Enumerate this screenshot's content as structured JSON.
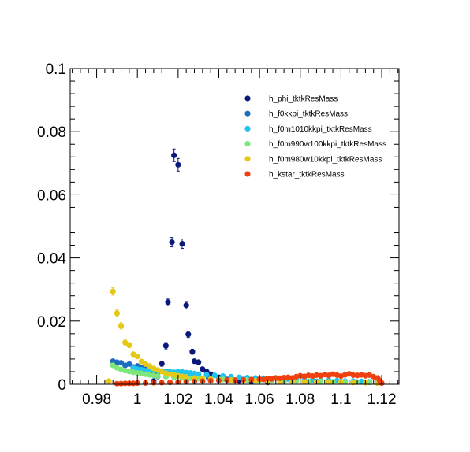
{
  "chart_data": {
    "type": "scatter",
    "title": "",
    "xlabel": "",
    "ylabel": "",
    "xlim": [
      0.967,
      1.1285
    ],
    "ylim": [
      0,
      0.1
    ],
    "xticks": [
      0.98,
      1.0,
      1.02,
      1.04,
      1.06,
      1.08,
      1.1,
      1.12
    ],
    "xtick_labels": [
      "0.98",
      "1",
      "1.02",
      "1.04",
      "1.06",
      "1.08",
      "1.1",
      "1.12"
    ],
    "yticks": [
      0,
      0.02,
      0.04,
      0.06,
      0.08,
      0.1
    ],
    "ytick_labels": [
      "0",
      "0.02",
      "0.04",
      "0.06",
      "0.08",
      "0.1"
    ],
    "grid": false,
    "legend_position": "top-right",
    "series": [
      {
        "name": "h_phi_tktkResMass",
        "color": "#0b1a7a",
        "points": [
          [
            1.008,
            0.001
          ],
          [
            1.01,
            0.0025
          ],
          [
            1.012,
            0.0065
          ],
          [
            1.014,
            0.0122
          ],
          [
            1.015,
            0.026
          ],
          [
            1.017,
            0.045
          ],
          [
            1.018,
            0.0725
          ],
          [
            1.02,
            0.0695
          ],
          [
            1.022,
            0.0445
          ],
          [
            1.024,
            0.025
          ],
          [
            1.025,
            0.0158
          ],
          [
            1.027,
            0.0103
          ],
          [
            1.028,
            0.0073
          ],
          [
            1.03,
            0.007
          ],
          [
            1.032,
            0.0048
          ],
          [
            1.034,
            0.004
          ],
          [
            1.036,
            0.0032
          ],
          [
            1.04,
            0.0022
          ],
          [
            1.044,
            0.0015
          ],
          [
            1.05,
            0.001
          ],
          [
            1.056,
            0.0008
          ],
          [
            1.064,
            0.0006
          ]
        ],
        "errors": [
          0.0004,
          0.0006,
          0.0008,
          0.001,
          0.0012,
          0.0015,
          0.002,
          0.002,
          0.0015,
          0.0012,
          0.001,
          0.0008,
          0.0007,
          0.0007,
          0.0006,
          0.0006,
          0.0005,
          0.0004,
          0.0003,
          0.0003,
          0.0003,
          0.0002
        ]
      },
      {
        "name": "h_f0kkpi_tktkResMass",
        "color": "#1c6cc0",
        "points": [
          [
            0.988,
            0.0073
          ],
          [
            0.99,
            0.007
          ],
          [
            0.992,
            0.0068
          ],
          [
            0.994,
            0.006
          ],
          [
            0.996,
            0.0064
          ],
          [
            0.998,
            0.0055
          ],
          [
            1.0,
            0.0058
          ],
          [
            1.002,
            0.0052
          ],
          [
            1.004,
            0.0048
          ],
          [
            1.006,
            0.0045
          ],
          [
            1.008,
            0.0042
          ],
          [
            1.01,
            0.0038
          ],
          [
            1.014,
            0.0035
          ],
          [
            1.018,
            0.003
          ],
          [
            1.022,
            0.0027
          ],
          [
            1.026,
            0.0024
          ],
          [
            1.03,
            0.0022
          ],
          [
            1.035,
            0.002
          ],
          [
            1.04,
            0.0018
          ],
          [
            1.046,
            0.0016
          ],
          [
            1.052,
            0.0015
          ],
          [
            1.058,
            0.0013
          ],
          [
            1.064,
            0.0012
          ],
          [
            1.07,
            0.0011
          ],
          [
            1.076,
            0.001
          ],
          [
            1.082,
            0.0009
          ],
          [
            1.088,
            0.0009
          ],
          [
            1.094,
            0.0008
          ],
          [
            1.1,
            0.0008
          ],
          [
            1.106,
            0.0007
          ],
          [
            1.112,
            0.0006
          ],
          [
            1.118,
            0.0005
          ]
        ],
        "errors": []
      },
      {
        "name": "h_f0m1010kkpi_tktkResMass",
        "color": "#1fc4ef",
        "points": [
          [
            0.998,
            0.0052
          ],
          [
            1.0,
            0.0048
          ],
          [
            1.002,
            0.0046
          ],
          [
            1.004,
            0.0043
          ],
          [
            1.006,
            0.0044
          ],
          [
            1.008,
            0.0045
          ],
          [
            1.01,
            0.0043
          ],
          [
            1.012,
            0.0042
          ],
          [
            1.014,
            0.0041
          ],
          [
            1.016,
            0.004
          ],
          [
            1.018,
            0.0038
          ],
          [
            1.02,
            0.004
          ],
          [
            1.022,
            0.0039
          ],
          [
            1.024,
            0.0037
          ],
          [
            1.026,
            0.0036
          ],
          [
            1.028,
            0.0034
          ],
          [
            1.03,
            0.0032
          ],
          [
            1.034,
            0.003
          ],
          [
            1.038,
            0.0028
          ],
          [
            1.042,
            0.0026
          ],
          [
            1.046,
            0.0024
          ],
          [
            1.05,
            0.0022
          ],
          [
            1.054,
            0.0021
          ],
          [
            1.058,
            0.002
          ],
          [
            1.062,
            0.0019
          ],
          [
            1.066,
            0.0018
          ],
          [
            1.07,
            0.0017
          ],
          [
            1.074,
            0.0016
          ],
          [
            1.078,
            0.0015
          ],
          [
            1.082,
            0.0014
          ],
          [
            1.086,
            0.0013
          ],
          [
            1.09,
            0.0012
          ],
          [
            1.094,
            0.0012
          ],
          [
            1.098,
            0.0011
          ],
          [
            1.102,
            0.001
          ],
          [
            1.106,
            0.001
          ],
          [
            1.11,
            0.0009
          ],
          [
            1.114,
            0.0008
          ],
          [
            1.118,
            0.0007
          ]
        ],
        "errors": []
      },
      {
        "name": "h_f0m990w100kkpi_tktkResMass",
        "color": "#7ee67a",
        "points": [
          [
            0.988,
            0.006
          ],
          [
            0.99,
            0.0052
          ],
          [
            0.992,
            0.0047
          ],
          [
            0.994,
            0.0043
          ],
          [
            0.996,
            0.004
          ],
          [
            0.998,
            0.0038
          ],
          [
            1.0,
            0.0036
          ],
          [
            1.002,
            0.0034
          ],
          [
            1.004,
            0.0032
          ],
          [
            1.006,
            0.003
          ],
          [
            1.008,
            0.0028
          ],
          [
            1.01,
            0.0026
          ],
          [
            1.014,
            0.0024
          ],
          [
            1.018,
            0.0022
          ],
          [
            1.022,
            0.002
          ],
          [
            1.026,
            0.0019
          ],
          [
            1.03,
            0.0018
          ],
          [
            1.036,
            0.0016
          ],
          [
            1.042,
            0.0015
          ],
          [
            1.048,
            0.0014
          ],
          [
            1.054,
            0.0013
          ],
          [
            1.06,
            0.0012
          ],
          [
            1.066,
            0.0011
          ],
          [
            1.072,
            0.001
          ],
          [
            1.078,
            0.001
          ],
          [
            1.084,
            0.0009
          ],
          [
            1.09,
            0.0009
          ],
          [
            1.096,
            0.0008
          ],
          [
            1.102,
            0.0008
          ],
          [
            1.108,
            0.0007
          ],
          [
            1.114,
            0.0006
          ],
          [
            1.118,
            0.0005
          ]
        ],
        "errors": []
      },
      {
        "name": "h_f0m980w10kkpi_tktkResMass",
        "color": "#e6c817",
        "points": [
          [
            0.986,
            0.001
          ],
          [
            0.988,
            0.0294
          ],
          [
            0.99,
            0.0225
          ],
          [
            0.992,
            0.0185
          ],
          [
            0.994,
            0.0132
          ],
          [
            0.996,
            0.0124
          ],
          [
            0.998,
            0.0095
          ],
          [
            1.0,
            0.0088
          ],
          [
            1.002,
            0.0072
          ],
          [
            1.004,
            0.0064
          ],
          [
            1.006,
            0.0058
          ],
          [
            1.008,
            0.005
          ],
          [
            1.01,
            0.0045
          ],
          [
            1.012,
            0.004
          ],
          [
            1.014,
            0.0035
          ],
          [
            1.016,
            0.0032
          ],
          [
            1.018,
            0.003
          ],
          [
            1.02,
            0.0027
          ],
          [
            1.022,
            0.0025
          ],
          [
            1.024,
            0.0023
          ],
          [
            1.028,
            0.002
          ],
          [
            1.032,
            0.0018
          ],
          [
            1.036,
            0.0016
          ],
          [
            1.04,
            0.0015
          ],
          [
            1.046,
            0.0013
          ],
          [
            1.052,
            0.0012
          ],
          [
            1.058,
            0.0011
          ],
          [
            1.064,
            0.001
          ],
          [
            1.07,
            0.0009
          ],
          [
            1.076,
            0.0009
          ],
          [
            1.082,
            0.0008
          ],
          [
            1.088,
            0.0008
          ],
          [
            1.094,
            0.0007
          ],
          [
            1.1,
            0.0007
          ],
          [
            1.106,
            0.0006
          ],
          [
            1.112,
            0.0005
          ],
          [
            1.118,
            0.0004
          ]
        ],
        "errors": [
          0.0003,
          0.0012,
          0.001,
          0.001,
          0.0008,
          0.0008,
          0.0007,
          0.0007,
          0.0006,
          0.0006,
          0.0005,
          0.0005,
          0.0005,
          0.0004,
          0.0004,
          0.0004,
          0.0004,
          0.0003,
          0.0003,
          0.0003,
          0.0003,
          0.0003,
          0.0003,
          0.0003,
          0.0002,
          0.0002,
          0.0002,
          0.0002,
          0.0002,
          0.0002,
          0.0002,
          0.0002,
          0.0002,
          0.0002,
          0.0002,
          0.0002,
          0.0002
        ]
      },
      {
        "name": "h_kstar_tktkResMass",
        "color": "#f0400f",
        "points": [
          [
            0.99,
            0.0002
          ],
          [
            0.992,
            0.0002
          ],
          [
            0.994,
            0.0003
          ],
          [
            0.996,
            0.0003
          ],
          [
            0.998,
            0.0003
          ],
          [
            1.0,
            0.0004
          ],
          [
            1.004,
            0.0004
          ],
          [
            1.008,
            0.0005
          ],
          [
            1.012,
            0.0005
          ],
          [
            1.016,
            0.0006
          ],
          [
            1.02,
            0.0007
          ],
          [
            1.024,
            0.0008
          ],
          [
            1.028,
            0.0009
          ],
          [
            1.032,
            0.001
          ],
          [
            1.036,
            0.0011
          ],
          [
            1.04,
            0.0012
          ],
          [
            1.044,
            0.0013
          ],
          [
            1.048,
            0.0013
          ],
          [
            1.052,
            0.0014
          ],
          [
            1.056,
            0.0015
          ],
          [
            1.06,
            0.0016
          ],
          [
            1.062,
            0.0015
          ],
          [
            1.064,
            0.0018
          ],
          [
            1.066,
            0.0017
          ],
          [
            1.068,
            0.002
          ],
          [
            1.07,
            0.0019
          ],
          [
            1.072,
            0.0021
          ],
          [
            1.074,
            0.0022
          ],
          [
            1.076,
            0.002
          ],
          [
            1.078,
            0.0024
          ],
          [
            1.08,
            0.0027
          ],
          [
            1.082,
            0.0025
          ],
          [
            1.084,
            0.0028
          ],
          [
            1.086,
            0.0026
          ],
          [
            1.088,
            0.0029
          ],
          [
            1.09,
            0.0027
          ],
          [
            1.092,
            0.0031
          ],
          [
            1.094,
            0.0028
          ],
          [
            1.096,
            0.0032
          ],
          [
            1.098,
            0.0029
          ],
          [
            1.1,
            0.0026
          ],
          [
            1.102,
            0.003
          ],
          [
            1.104,
            0.0033
          ],
          [
            1.106,
            0.0029
          ],
          [
            1.108,
            0.0028
          ],
          [
            1.11,
            0.003
          ],
          [
            1.112,
            0.0027
          ],
          [
            1.114,
            0.0029
          ],
          [
            1.116,
            0.0024
          ],
          [
            1.118,
            0.002
          ],
          [
            1.119,
            0.0012
          ],
          [
            1.12,
            0.0004
          ]
        ],
        "errors": [
          0.0001,
          0.0001,
          0.0001,
          0.0001,
          0.0001,
          0.0001,
          0.0001,
          0.0001,
          0.0001,
          0.0001,
          0.0001,
          0.0002,
          0.0002,
          0.0002,
          0.0002,
          0.0002,
          0.0002,
          0.0002,
          0.0002,
          0.0002,
          0.0002,
          0.0002,
          0.0002,
          0.0002,
          0.0002,
          0.0002,
          0.0003,
          0.0003,
          0.0003,
          0.0003,
          0.0003,
          0.0003,
          0.0003,
          0.0003,
          0.0003,
          0.0003,
          0.0003,
          0.0003,
          0.0003,
          0.0003,
          0.0003,
          0.0003,
          0.0003,
          0.0003,
          0.0003,
          0.0003,
          0.0003,
          0.0003,
          0.0003,
          0.0003,
          0.0002,
          0.0001
        ]
      }
    ]
  }
}
